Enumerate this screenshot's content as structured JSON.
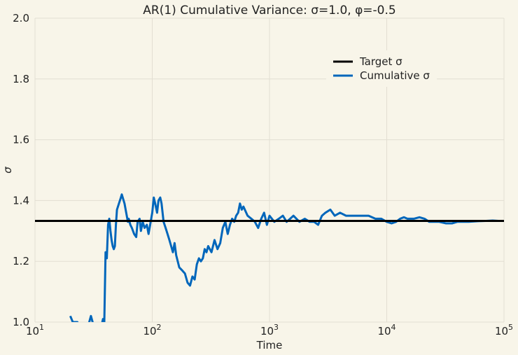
{
  "chart_data": {
    "type": "line",
    "title": "AR(1) Cumulative Variance: σ=1.0, φ=-0.5",
    "xlabel": "Time",
    "ylabel": "σ",
    "xscale": "log",
    "xlim": [
      10,
      100000
    ],
    "ylim": [
      1.0,
      2.0
    ],
    "grid": true,
    "legend_position": "top-right",
    "x_ticks": [
      {
        "value": 10,
        "base": "10",
        "exp": "1"
      },
      {
        "value": 100,
        "base": "10",
        "exp": "2"
      },
      {
        "value": 1000,
        "base": "10",
        "exp": "3"
      },
      {
        "value": 10000,
        "base": "10",
        "exp": "4"
      },
      {
        "value": 100000,
        "base": "10",
        "exp": "5"
      }
    ],
    "y_ticks": [
      "1.0",
      "1.2",
      "1.4",
      "1.6",
      "1.8",
      "2.0"
    ],
    "series": [
      {
        "name": "Target σ",
        "color": "#000000",
        "kind": "hline",
        "value": 1.333
      },
      {
        "name": "Cumulative σ",
        "color": "#0066bb",
        "kind": "line",
        "x": [
          20,
          21,
          22,
          23,
          25,
          27,
          29,
          30,
          31,
          33,
          35,
          37,
          38,
          39,
          40,
          41,
          42,
          43,
          44,
          45,
          46,
          47,
          48,
          49,
          50,
          52,
          54,
          55,
          56,
          58,
          60,
          62,
          63,
          65,
          67,
          70,
          73,
          75,
          78,
          80,
          83,
          86,
          90,
          93,
          96,
          100,
          103,
          106,
          110,
          113,
          117,
          120,
          125,
          130,
          135,
          140,
          145,
          150,
          155,
          160,
          170,
          180,
          190,
          200,
          210,
          220,
          230,
          240,
          250,
          260,
          270,
          280,
          290,
          300,
          320,
          340,
          360,
          380,
          400,
          420,
          440,
          460,
          480,
          500,
          520,
          540,
          560,
          580,
          600,
          650,
          700,
          750,
          800,
          850,
          900,
          950,
          1000,
          1100,
          1200,
          1300,
          1400,
          1500,
          1600,
          1800,
          2000,
          2200,
          2400,
          2600,
          2800,
          3000,
          3300,
          3600,
          4000,
          4500,
          5000,
          5500,
          6000,
          7000,
          8000,
          9000,
          10000,
          11000,
          12000,
          13000,
          14000,
          15000,
          17000,
          19000,
          21000,
          23000,
          25000,
          28000,
          32000,
          36000,
          40000,
          45000,
          50000,
          60000,
          70000,
          80000,
          90000,
          100000
        ],
        "y": [
          1.02,
          1.0,
          1.0,
          1.0,
          0.96,
          0.97,
          1.0,
          1.02,
          1.0,
          0.96,
          0.97,
          0.99,
          1.01,
          1.0,
          1.23,
          1.21,
          1.32,
          1.34,
          1.3,
          1.27,
          1.25,
          1.24,
          1.25,
          1.32,
          1.37,
          1.39,
          1.41,
          1.42,
          1.41,
          1.39,
          1.36,
          1.33,
          1.34,
          1.32,
          1.31,
          1.29,
          1.28,
          1.33,
          1.34,
          1.3,
          1.33,
          1.31,
          1.32,
          1.29,
          1.32,
          1.36,
          1.41,
          1.39,
          1.36,
          1.4,
          1.41,
          1.39,
          1.33,
          1.31,
          1.29,
          1.27,
          1.25,
          1.23,
          1.26,
          1.22,
          1.18,
          1.17,
          1.16,
          1.13,
          1.12,
          1.15,
          1.14,
          1.19,
          1.21,
          1.2,
          1.21,
          1.24,
          1.23,
          1.25,
          1.23,
          1.27,
          1.24,
          1.26,
          1.31,
          1.33,
          1.29,
          1.32,
          1.34,
          1.33,
          1.35,
          1.36,
          1.39,
          1.37,
          1.38,
          1.35,
          1.34,
          1.33,
          1.31,
          1.34,
          1.36,
          1.32,
          1.35,
          1.33,
          1.34,
          1.35,
          1.33,
          1.34,
          1.35,
          1.33,
          1.34,
          1.33,
          1.33,
          1.32,
          1.35,
          1.36,
          1.37,
          1.35,
          1.36,
          1.35,
          1.35,
          1.35,
          1.35,
          1.35,
          1.34,
          1.34,
          1.33,
          1.325,
          1.33,
          1.34,
          1.345,
          1.34,
          1.34,
          1.345,
          1.34,
          1.33,
          1.33,
          1.33,
          1.325,
          1.325,
          1.33,
          1.33,
          1.33,
          1.332,
          1.333,
          1.334,
          1.333,
          1.333
        ]
      }
    ]
  }
}
